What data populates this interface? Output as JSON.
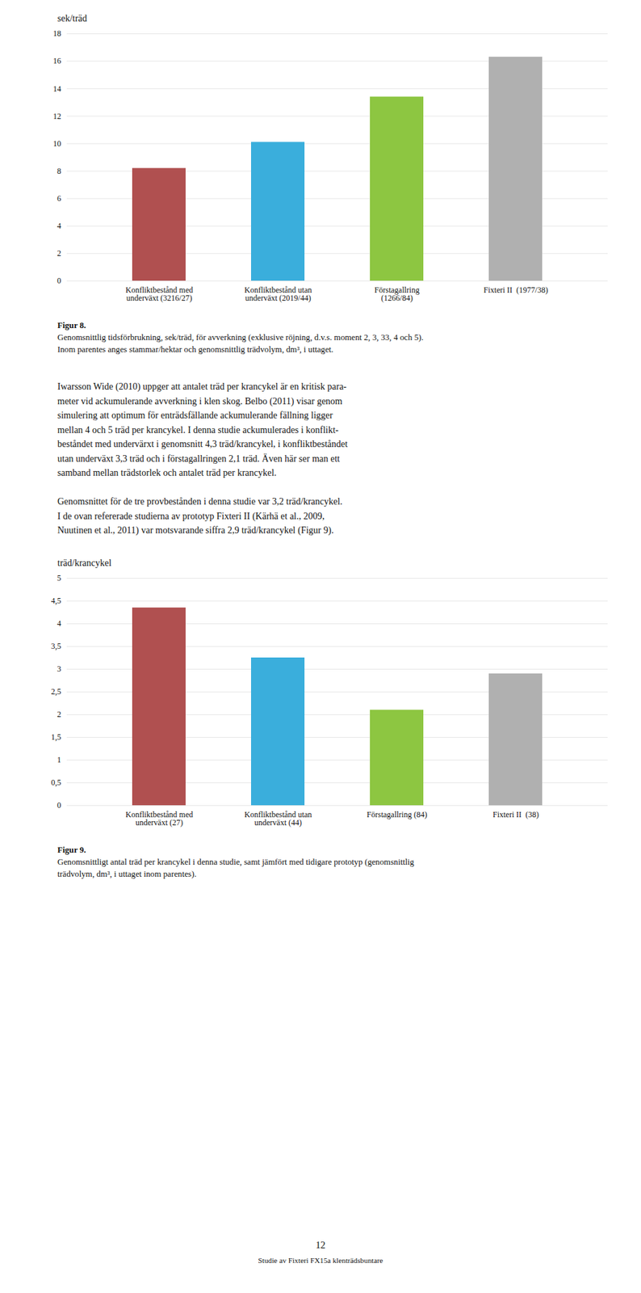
{
  "chart_data": [
    {
      "type": "bar",
      "ylabel": "sek/träd",
      "categories": [
        "Konfliktbestånd med\nunderväxt (3216/27)",
        "Konfliktbestånd utan\nunderväxt (2019/44)",
        "Förstagallring\n(1266/84)",
        "Fixteri II  (1977/38)"
      ],
      "values": [
        8.2,
        10.1,
        13.4,
        16.3
      ],
      "colors": [
        "#b05050",
        "#3aaedc",
        "#8dc641",
        "#b0b0b0"
      ],
      "ylim": [
        0,
        18
      ],
      "yticks": [
        0,
        2,
        4,
        6,
        8,
        10,
        12,
        14,
        16,
        18
      ],
      "grid": true,
      "figure_label": "Figur 8.",
      "caption": [
        "Genomsnittlig tidsförbrukning, sek/träd, för avverkning (exklusive röjning, d.v.s. moment 2, 3, 33, 4 och 5).",
        "Inom parentes anges stammar/hektar och genomsnittlig trädvolym, dm³, i uttaget."
      ]
    },
    {
      "type": "bar",
      "ylabel": "träd/krancykel",
      "categories": [
        "Konfliktbestånd med\nunderväxt (27)",
        "Konfliktbestånd utan\nunderväxt (44)",
        "Förstagallring (84)",
        "Fixteri II  (38)"
      ],
      "values": [
        4.35,
        3.25,
        2.1,
        2.9
      ],
      "colors": [
        "#b05050",
        "#3aaedc",
        "#8dc641",
        "#b0b0b0"
      ],
      "ylim": [
        0,
        5
      ],
      "yticks": [
        0,
        {
          "value": 0.5,
          "label": "0,5"
        },
        1,
        {
          "value": 1.5,
          "label": "1,5"
        },
        2,
        {
          "value": 2.5,
          "label": "2,5"
        },
        3,
        {
          "value": 3.5,
          "label": "3,5"
        },
        4,
        {
          "value": 4.5,
          "label": "4,5"
        },
        5
      ],
      "grid": true,
      "figure_label": "Figur 9.",
      "caption": [
        "Genomsnittligt antal träd per krancykel i denna studie, samt jämfört med tidigare prototyp (genomsnittlig",
        "trädvolym, dm³, i uttaget inom parentes)."
      ]
    }
  ],
  "body_text": [
    [
      "Iwarsson Wide (2010) uppger att antalet träd per krancykel är en kritisk para-",
      "meter vid ackumulerande avverkning i klen skog. Belbo (2011) visar genom",
      "simulering att optimum för enträdsfällande ackumulerande fällning ligger",
      "mellan 4 och 5 träd per krancykel. I denna studie ackumulerades i konflikt-",
      "beståndet med undervärxt i genomsnitt 4,3 träd/krancykel, i konfliktbeståndet",
      "utan underväxt 3,3 träd och i förstagallringen 2,1 träd. Även här ser man ett",
      "samband mellan trädstorlek och antalet träd per krancykel."
    ],
    [
      "Genomsnittet för de tre provbestånden i denna studie var 3,2 träd/krancykel.",
      "I de ovan refererade studierna av prototyp Fixteri II (Kärhä et al., 2009,",
      "Nuutinen et al., 2011) var motsvarande siffra 2,9 träd/krancykel (Figur 9)."
    ]
  ],
  "page_number": "12",
  "footer": "Studie av Fixteri FX15a klenträdsbuntare"
}
